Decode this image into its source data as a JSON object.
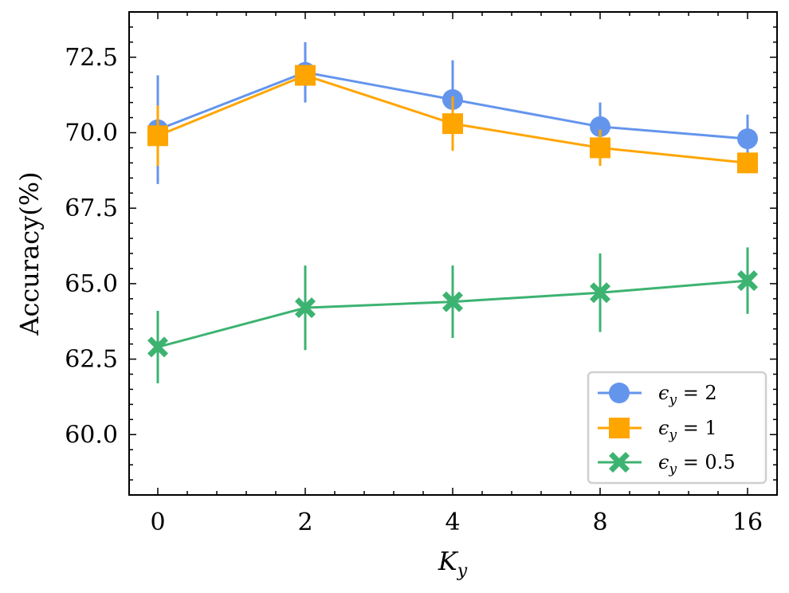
{
  "chart_data": {
    "type": "line",
    "title": "",
    "xlabel": "K_y",
    "xlabel_main": "K",
    "xlabel_sub": "y",
    "ylabel": "Accuracy(%)",
    "x_categories": [
      "0",
      "2",
      "4",
      "8",
      "16"
    ],
    "ylim": [
      58.0,
      74.0
    ],
    "yticks": [
      60.0,
      62.5,
      65.0,
      67.5,
      70.0,
      72.5
    ],
    "ytick_labels": [
      "60.0",
      "62.5",
      "65.0",
      "67.5",
      "70.0",
      "72.5"
    ],
    "legend_position": "bottom-right",
    "series": [
      {
        "name": "ϵ_y = 2",
        "label_main": "ϵ",
        "label_sub": "y",
        "label_value": " = 2",
        "color": "#6495ED",
        "marker": "circle",
        "values": [
          70.1,
          72.0,
          71.1,
          70.2,
          69.8
        ],
        "errors": [
          1.8,
          1.0,
          1.3,
          0.8,
          0.8
        ]
      },
      {
        "name": "ϵ_y = 1",
        "label_main": "ϵ",
        "label_sub": "y",
        "label_value": " = 1",
        "color": "#FFA500",
        "marker": "square",
        "values": [
          69.9,
          71.9,
          70.3,
          69.5,
          69.0
        ],
        "errors": [
          1.0,
          0.3,
          0.9,
          0.6,
          0.3
        ]
      },
      {
        "name": "ϵ_y = 0.5",
        "label_main": "ϵ",
        "label_sub": "y",
        "label_value": " = 0.5",
        "color": "#3CB371",
        "marker": "x-filled",
        "values": [
          62.9,
          64.2,
          64.4,
          64.7,
          65.1
        ],
        "errors": [
          1.2,
          1.4,
          1.2,
          1.3,
          1.1
        ]
      }
    ]
  }
}
